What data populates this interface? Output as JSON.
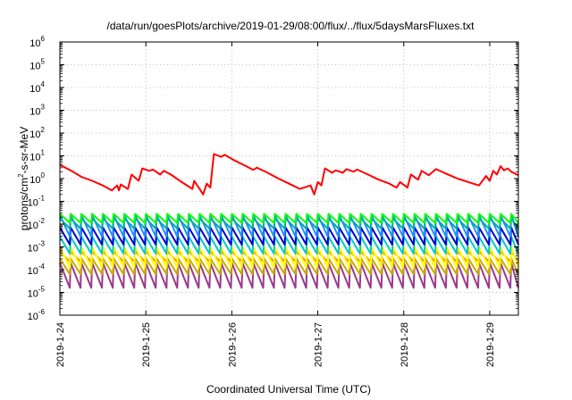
{
  "chart_data": {
    "type": "line",
    "title": "/data/run/goesPlots/archive/2019-01-29/08:00/flux/../flux/5daysMarsFluxes.txt",
    "xlabel": "Coordinated Universal Time (UTC)",
    "ylabel": "protons/cm2-s-sr-MeV",
    "y_scale": "log",
    "ylim_exponent": [
      -6,
      6
    ],
    "y_tick_exponents": [
      -6,
      -5,
      -4,
      -3,
      -2,
      -1,
      0,
      1,
      2,
      3,
      4,
      5,
      6
    ],
    "y_tick_base": "10",
    "x_start": "2019-01-24 00:00",
    "x_end": "2019-01-29 08:00",
    "x_tick_labels": [
      "2019-1-24",
      "2019-1-25",
      "2019-1-26",
      "2019-1-27",
      "2019-1-28",
      "2019-1-29"
    ],
    "grid": true,
    "series": [
      {
        "color": "#ff0000",
        "description": "top red flux curve",
        "points": [
          [
            "2019-01-24 00:00",
            4.0
          ],
          [
            "2019-01-24 03:00",
            2.3
          ],
          [
            "2019-01-24 06:00",
            1.2
          ],
          [
            "2019-01-24 09:00",
            0.8
          ],
          [
            "2019-01-24 12:00",
            0.5
          ],
          [
            "2019-01-24 14:30",
            0.3
          ],
          [
            "2019-01-24 16:00",
            0.5
          ],
          [
            "2019-01-24 16:30",
            0.3
          ],
          [
            "2019-01-24 17:00",
            0.55
          ],
          [
            "2019-01-24 19:00",
            0.35
          ],
          [
            "2019-01-24 20:00",
            1.5
          ],
          [
            "2019-01-24 22:00",
            0.8
          ],
          [
            "2019-01-24 23:00",
            2.8
          ],
          [
            "2019-01-25 01:00",
            2.2
          ],
          [
            "2019-01-25 02:00",
            2.5
          ],
          [
            "2019-01-25 04:00",
            1.5
          ],
          [
            "2019-01-25 05:00",
            2.2
          ],
          [
            "2019-01-25 07:00",
            1.5
          ],
          [
            "2019-01-25 10:00",
            0.7
          ],
          [
            "2019-01-25 13:00",
            0.35
          ],
          [
            "2019-01-25 13:30",
            0.8
          ],
          [
            "2019-01-25 15:00",
            0.35
          ],
          [
            "2019-01-25 16:00",
            0.2
          ],
          [
            "2019-01-25 17:00",
            0.6
          ],
          [
            "2019-01-25 18:00",
            0.4
          ],
          [
            "2019-01-25 19:00",
            12
          ],
          [
            "2019-01-25 21:00",
            9
          ],
          [
            "2019-01-25 22:00",
            11
          ],
          [
            "2019-01-26 01:00",
            6
          ],
          [
            "2019-01-26 04:00",
            3.5
          ],
          [
            "2019-01-26 06:00",
            2.4
          ],
          [
            "2019-01-26 07:00",
            3.0
          ],
          [
            "2019-01-26 10:00",
            1.8
          ],
          [
            "2019-01-26 13:00",
            1.0
          ],
          [
            "2019-01-26 16:00",
            0.6
          ],
          [
            "2019-01-26 19:00",
            0.35
          ],
          [
            "2019-01-26 22:00",
            0.5
          ],
          [
            "2019-01-26 23:00",
            0.2
          ],
          [
            "2019-01-27 00:00",
            0.7
          ],
          [
            "2019-01-27 01:00",
            0.5
          ],
          [
            "2019-01-27 02:00",
            2.8
          ],
          [
            "2019-01-27 04:00",
            1.8
          ],
          [
            "2019-01-27 05:00",
            2.3
          ],
          [
            "2019-01-27 07:00",
            1.8
          ],
          [
            "2019-01-27 08:00",
            2.6
          ],
          [
            "2019-01-27 10:00",
            2.0
          ],
          [
            "2019-01-27 11:00",
            2.5
          ],
          [
            "2019-01-27 14:00",
            1.5
          ],
          [
            "2019-01-27 17:00",
            0.9
          ],
          [
            "2019-01-27 20:00",
            0.6
          ],
          [
            "2019-01-27 22:00",
            0.4
          ],
          [
            "2019-01-27 23:00",
            0.7
          ],
          [
            "2019-01-28 01:00",
            0.4
          ],
          [
            "2019-01-28 02:00",
            1.5
          ],
          [
            "2019-01-28 04:00",
            0.9
          ],
          [
            "2019-01-28 05:00",
            2.2
          ],
          [
            "2019-01-28 07:00",
            1.4
          ],
          [
            "2019-01-28 09:00",
            2.6
          ],
          [
            "2019-01-28 12:00",
            1.6
          ],
          [
            "2019-01-28 15:00",
            1.0
          ],
          [
            "2019-01-28 18:00",
            0.7
          ],
          [
            "2019-01-28 21:00",
            0.5
          ],
          [
            "2019-01-28 23:00",
            1.3
          ],
          [
            "2019-01-29 00:00",
            0.8
          ],
          [
            "2019-01-29 01:00",
            2.2
          ],
          [
            "2019-01-29 02:00",
            1.5
          ],
          [
            "2019-01-29 03:00",
            3.5
          ],
          [
            "2019-01-29 04:00",
            2.3
          ],
          [
            "2019-01-29 05:00",
            2.8
          ],
          [
            "2019-01-29 06:00",
            2.0
          ],
          [
            "2019-01-29 08:00",
            1.4
          ]
        ]
      },
      {
        "color": "#00ff00",
        "description": "oscillating band",
        "log10_peak": -1.55,
        "log10_trough": -1.95
      },
      {
        "color": "#00aaaa",
        "description": "oscillating band",
        "log10_peak": -1.75,
        "log10_trough": -2.2
      },
      {
        "color": "#1e90ff",
        "description": "oscillating band",
        "log10_peak": -1.6,
        "log10_trough": -2.55
      },
      {
        "color": "#0000cd",
        "description": "oscillating band",
        "log10_peak": -2.15,
        "log10_trough": -2.9
      },
      {
        "color": "#00c8c8",
        "description": "oscillating band",
        "log10_peak": -2.55,
        "log10_trough": -3.3
      },
      {
        "color": "#ffff00",
        "description": "oscillating band",
        "log10_peak": -3.0,
        "log10_trough": -3.9
      },
      {
        "color": "#ff8c00",
        "description": "oscillating band",
        "log10_peak": -3.2,
        "log10_trough": -3.65
      },
      {
        "color": "#c8a800",
        "description": "oscillating band",
        "log10_peak": -3.5,
        "log10_trough": -4.2
      },
      {
        "color": "#9a3a8a",
        "description": "oscillating band",
        "log10_peak": -3.7,
        "log10_trough": -4.8
      }
    ],
    "band_period_hours": 3
  }
}
